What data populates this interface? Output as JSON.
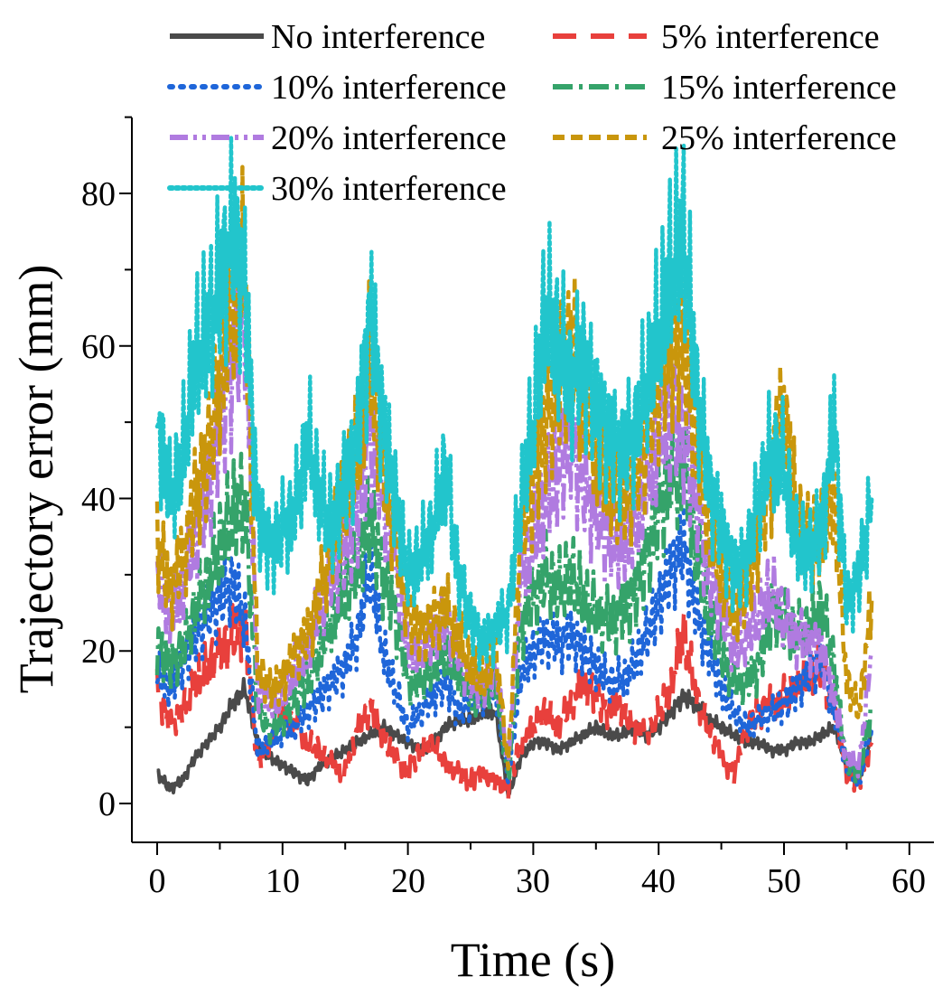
{
  "chart_data": {
    "type": "line",
    "title": "",
    "xlabel": "Time (s)",
    "ylabel": "Trajectory error (mm)",
    "xlim": [
      -2,
      62
    ],
    "ylim": [
      -5,
      90
    ],
    "xticks": [
      0,
      10,
      20,
      30,
      40,
      50,
      60
    ],
    "yticks": [
      0,
      20,
      40,
      60,
      80
    ],
    "xtick_labels": [
      "0",
      "10",
      "20",
      "30",
      "40",
      "50",
      "60"
    ],
    "ytick_labels": [
      "0",
      "20",
      "40",
      "60",
      "80"
    ],
    "grid": false,
    "legend_position": "top",
    "x": [
      0,
      1,
      2,
      3,
      4,
      5,
      6,
      7,
      8,
      9,
      10,
      11,
      12,
      13,
      14,
      15,
      16,
      17,
      18,
      19,
      20,
      21,
      22,
      23,
      24,
      25,
      26,
      27,
      28,
      29,
      30,
      31,
      32,
      33,
      34,
      35,
      36,
      37,
      38,
      39,
      40,
      41,
      42,
      43,
      44,
      45,
      46,
      47,
      48,
      49,
      50,
      51,
      52,
      53,
      54,
      55,
      56,
      57
    ],
    "series": [
      {
        "name": "No interference",
        "color": "#4a4a4a",
        "dash": "solid",
        "values": [
          4,
          2,
          3,
          6,
          8,
          10,
          13,
          15,
          8,
          6,
          5,
          4,
          3,
          5,
          6,
          7,
          8,
          9,
          10,
          9,
          8,
          7,
          8,
          10,
          11,
          11,
          12,
          12,
          1,
          6,
          8,
          8,
          7,
          8,
          9,
          10,
          9,
          9,
          10,
          9,
          10,
          12,
          14,
          13,
          11,
          10,
          9,
          8,
          8,
          7,
          7,
          8,
          8,
          9,
          10,
          5,
          3,
          9
        ]
      },
      {
        "name": "5% interference",
        "color": "#e8403c",
        "dash": "long",
        "values": [
          15,
          10,
          12,
          16,
          18,
          20,
          22,
          24,
          5,
          8,
          12,
          10,
          8,
          7,
          5,
          4,
          10,
          13,
          9,
          6,
          4,
          7,
          8,
          5,
          4,
          3,
          4,
          3,
          2,
          8,
          10,
          12,
          10,
          13,
          16,
          14,
          12,
          13,
          10,
          9,
          12,
          15,
          23,
          14,
          10,
          6,
          4,
          10,
          12,
          13,
          14,
          15,
          17,
          18,
          12,
          4,
          3,
          8
        ]
      },
      {
        "name": "10% interference",
        "color": "#1f66d9",
        "dash": "dotted",
        "values": [
          17,
          15,
          18,
          22,
          25,
          27,
          29,
          24,
          7,
          8,
          9,
          10,
          12,
          14,
          16,
          18,
          22,
          31,
          20,
          15,
          10,
          12,
          14,
          16,
          12,
          13,
          14,
          15,
          3,
          17,
          20,
          22,
          21,
          22,
          20,
          18,
          16,
          16,
          18,
          22,
          26,
          31,
          34,
          25,
          20,
          15,
          12,
          10,
          11,
          12,
          13,
          15,
          17,
          19,
          12,
          5,
          3,
          10
        ]
      },
      {
        "name": "15% interference",
        "color": "#35a36a",
        "dash": "dashdot",
        "values": [
          21,
          18,
          20,
          25,
          29,
          34,
          38,
          40,
          12,
          10,
          11,
          14,
          16,
          20,
          24,
          28,
          31,
          38,
          30,
          25,
          16,
          16,
          18,
          20,
          17,
          14,
          14,
          16,
          3,
          23,
          27,
          30,
          28,
          30,
          27,
          25,
          24,
          25,
          27,
          32,
          38,
          43,
          44,
          33,
          25,
          20,
          16,
          16,
          18,
          25,
          24,
          22,
          23,
          26,
          18,
          5,
          4,
          13
        ]
      },
      {
        "name": "20% interference",
        "color": "#b07be0",
        "dash": "dashdotdot",
        "values": [
          31,
          24,
          28,
          35,
          40,
          50,
          58,
          66,
          15,
          13,
          14,
          18,
          20,
          26,
          30,
          34,
          38,
          49,
          40,
          32,
          20,
          20,
          22,
          24,
          20,
          16,
          15,
          18,
          5,
          30,
          34,
          40,
          44,
          48,
          42,
          38,
          35,
          34,
          36,
          42,
          48,
          50,
          48,
          40,
          30,
          26,
          20,
          22,
          25,
          28,
          24,
          22,
          21,
          20,
          14,
          6,
          5,
          20
        ]
      },
      {
        "name": "25% interference",
        "color": "#c9960c",
        "dash": "shortdash",
        "values": [
          35,
          28,
          32,
          40,
          45,
          55,
          65,
          70,
          18,
          15,
          16,
          20,
          22,
          28,
          34,
          40,
          46,
          58,
          44,
          35,
          25,
          22,
          24,
          26,
          22,
          18,
          16,
          20,
          5,
          36,
          42,
          50,
          55,
          60,
          52,
          46,
          42,
          40,
          42,
          48,
          56,
          60,
          61,
          48,
          36,
          30,
          25,
          28,
          35,
          44,
          52,
          38,
          34,
          35,
          40,
          16,
          12,
          27
        ]
      },
      {
        "name": "30% interference",
        "color": "#22c5cc",
        "dash": "dense",
        "values": [
          51,
          40,
          45,
          58,
          62,
          68,
          75,
          68,
          38,
          33,
          36,
          38,
          48,
          40,
          36,
          42,
          48,
          65,
          50,
          40,
          30,
          32,
          36,
          44,
          30,
          24,
          21,
          23,
          25,
          40,
          50,
          65,
          60,
          55,
          58,
          52,
          48,
          46,
          48,
          55,
          62,
          70,
          75,
          55,
          42,
          36,
          30,
          32,
          40,
          46,
          44,
          34,
          33,
          36,
          50,
          26,
          30,
          40
        ]
      }
    ]
  }
}
